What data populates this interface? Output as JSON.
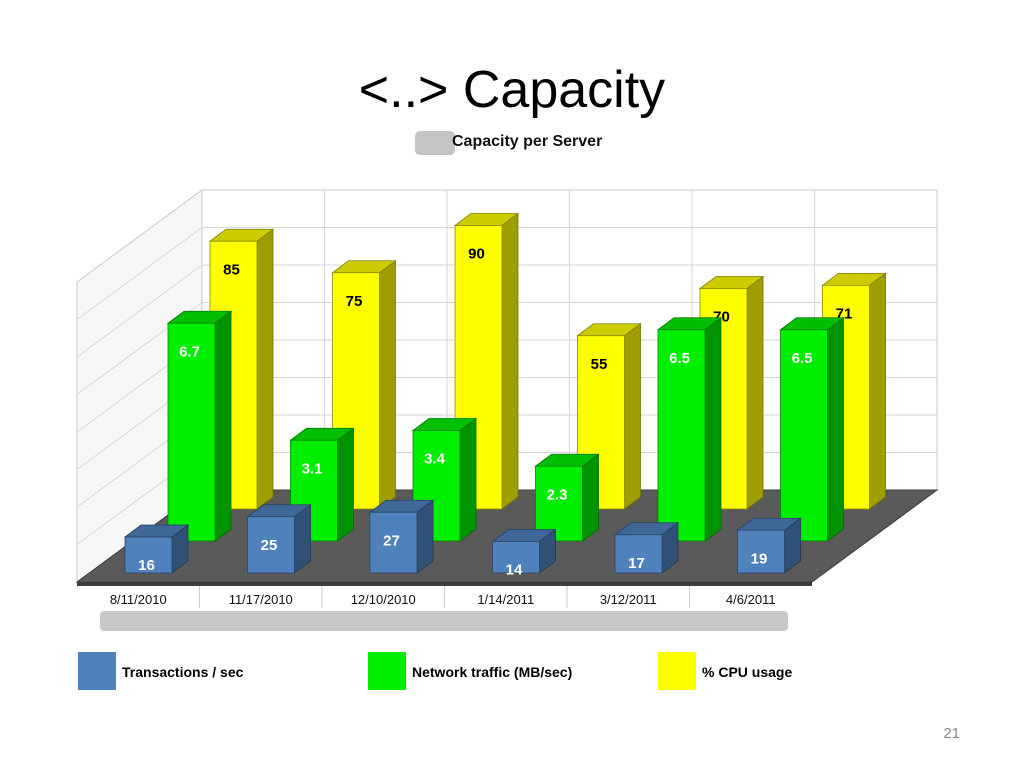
{
  "slide": {
    "title": "<..> Capacity",
    "page_number": "21"
  },
  "chart_data": {
    "type": "bar",
    "title": "Capacity per Server",
    "categories": [
      "8/11/2010",
      "11/17/2010",
      "12/10/2010",
      "1/14/2011",
      "3/12/2011",
      "4/6/2011"
    ],
    "series": [
      {
        "name": "Transactions / sec",
        "values": [
          16,
          25,
          27,
          14,
          17,
          19
        ]
      },
      {
        "name": "Network traffic (MB/sec)",
        "values": [
          6.7,
          3.1,
          3.4,
          2.3,
          6.5,
          6.5
        ]
      },
      {
        "name": "% CPU usage",
        "values": [
          85,
          75,
          90,
          55,
          70,
          71
        ]
      }
    ],
    "grid": true,
    "legend_position": "bottom",
    "colors": {
      "blue": "#4f81bd",
      "green": "#00ee00",
      "yellow": "#ffff00"
    }
  },
  "legend": [
    {
      "label": "Transactions / sec",
      "color": "#4f81bd"
    },
    {
      "label": "Network traffic (MB/sec)",
      "color": "#00ee00"
    },
    {
      "label": "% CPU usage",
      "color": "#ffff00"
    }
  ]
}
